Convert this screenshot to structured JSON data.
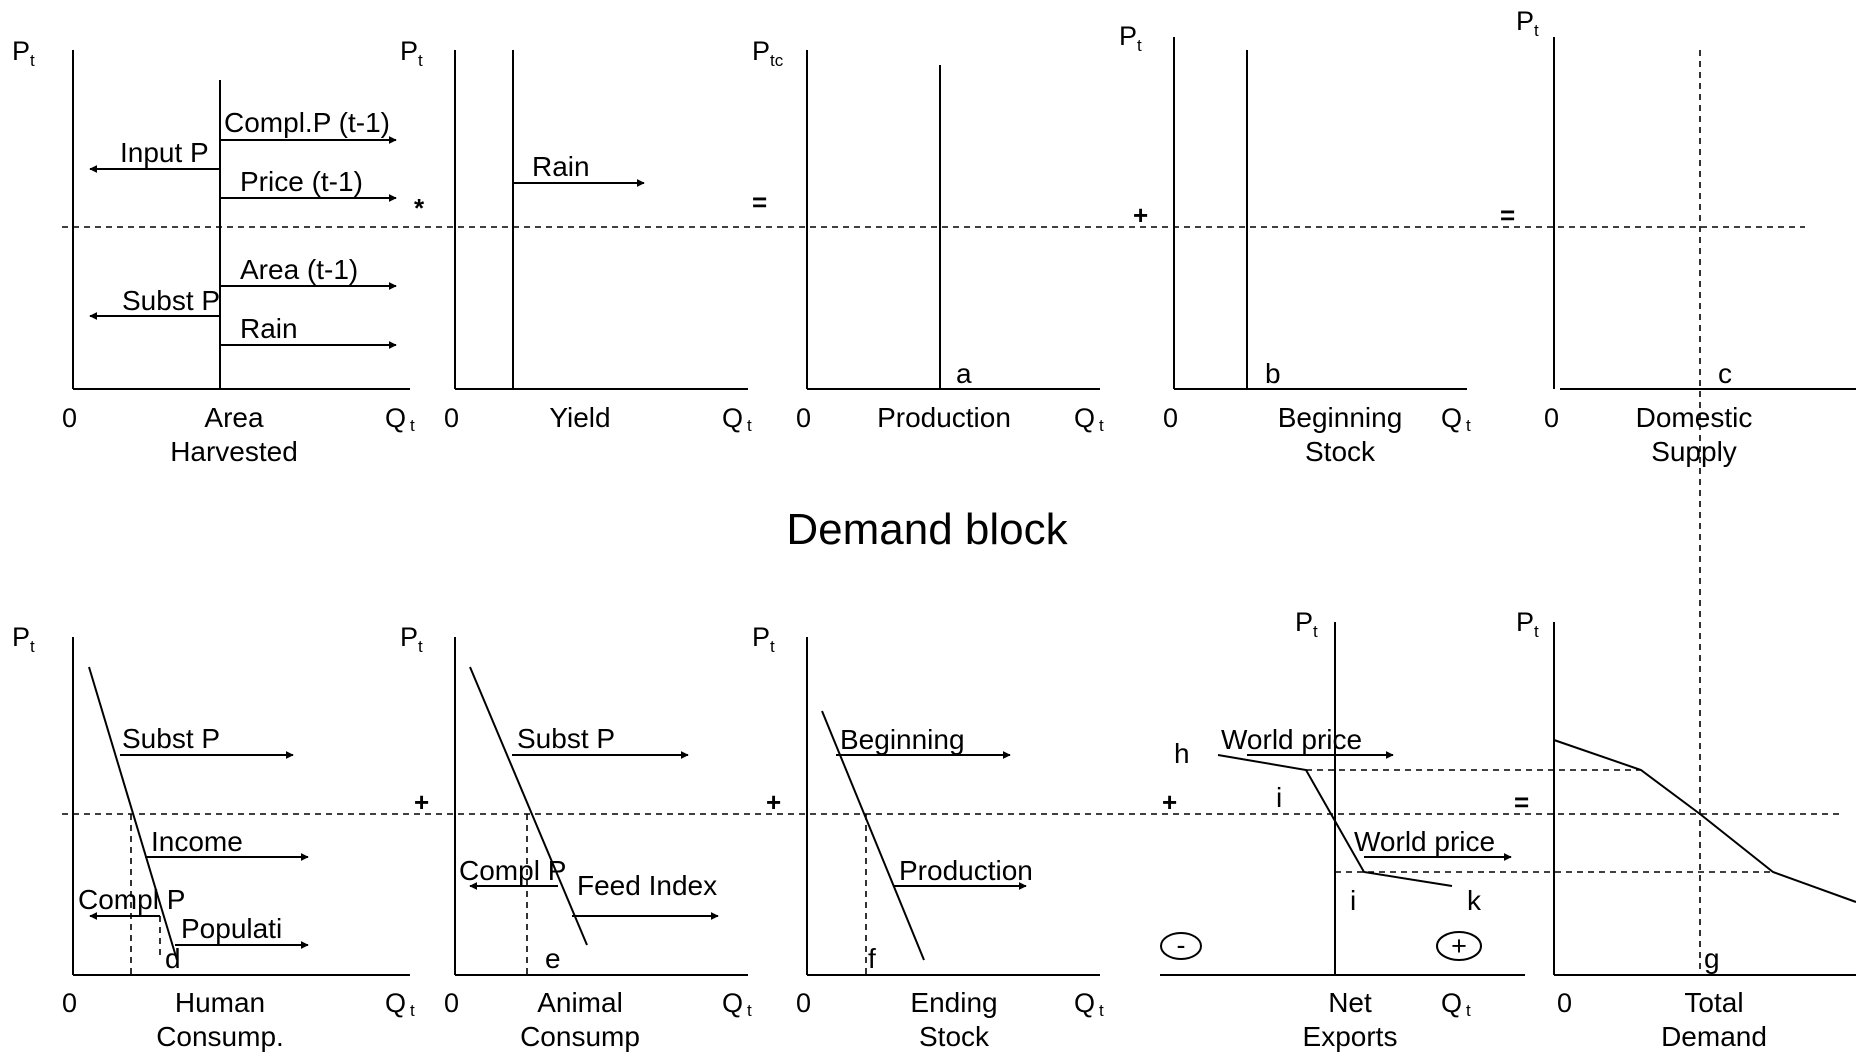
{
  "demand_block_title": "Demand block",
  "axis_labels": {
    "p": "P",
    "p_sub_t": "t",
    "p_sub_tc": "tc",
    "q": "Q",
    "q_sub": "t",
    "zero": "0"
  },
  "operators": {
    "times": "*",
    "equals": "=",
    "plus": "+",
    "minus_circle": "-",
    "plus_circle": "+"
  },
  "supply_panels": {
    "area": {
      "xlabel_1": "Area",
      "xlabel_2": "Harvested",
      "shifters": {
        "compl_p": "Compl.P (t-1)",
        "input_p": "Input P",
        "price": "Price (t-1)",
        "area": "Area (t-1)",
        "subst_p": "Subst P",
        "rain": "Rain"
      }
    },
    "yield": {
      "xlabel_1": "Yield",
      "shifters": {
        "rain": "Rain"
      }
    },
    "production": {
      "xlabel_1": "Production",
      "point": "a"
    },
    "beginning_stock": {
      "xlabel_1": "Beginning",
      "xlabel_2": "Stock",
      "point": "b"
    },
    "domestic_supply": {
      "xlabel_1": "Domestic",
      "xlabel_2": "Supply",
      "point": "c"
    }
  },
  "demand_panels": {
    "human": {
      "xlabel_1": "Human",
      "xlabel_2": "Consump.",
      "point": "d",
      "shifters": {
        "subst_p": "Subst P",
        "income": "Income",
        "compl_p": "Compl P",
        "population": "Populati"
      }
    },
    "animal": {
      "xlabel_1": "Animal",
      "xlabel_2": "Consump",
      "point": "e",
      "shifters": {
        "subst_p": "Subst P",
        "compl_p": "Compl P",
        "feed_index": "Feed Index"
      }
    },
    "ending_stock": {
      "xlabel_1": "Ending",
      "xlabel_2": "Stock",
      "point": "f",
      "shifters": {
        "beginning": "Beginning",
        "production": "Production"
      }
    },
    "net_exports": {
      "xlabel_1": "Net",
      "xlabel_2": "Exports",
      "points": {
        "h": "h",
        "i_upper": "i",
        "i_lower": "i",
        "k": "k"
      },
      "shifters": {
        "world_price_1": "World price",
        "world_price_2": "World price"
      }
    },
    "total_demand": {
      "xlabel_1": "Total",
      "xlabel_2": "Demand",
      "point": "g"
    }
  }
}
